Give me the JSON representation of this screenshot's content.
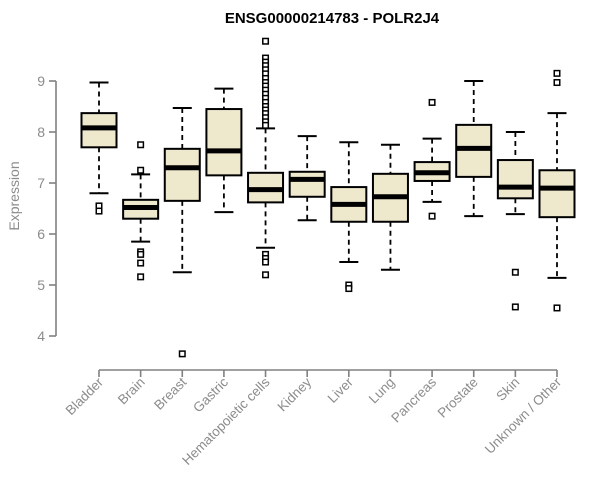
{
  "window": {
    "background": "#ffffff"
  },
  "colors": {
    "box_fill": "#EEE8CD",
    "box_stroke": "#000000",
    "median_stroke": "#000000",
    "whisker_stroke": "#000000",
    "outlier_stroke": "#000000",
    "axis_line": "#808080",
    "axis_text": "#8c8c8c",
    "title_text": "#000000"
  },
  "chart_data": {
    "type": "boxplot",
    "title": "ENSG00000214783 - POLR2J4",
    "xlabel": "",
    "ylabel": "Expression",
    "yticks": [
      4,
      5,
      6,
      7,
      8,
      9
    ],
    "ylim": [
      3.5,
      9.9
    ],
    "grid": false,
    "legend": null,
    "categories": [
      "Bladder",
      "Brain",
      "Breast",
      "Gastric",
      "Hematopoietic cells",
      "Kidney",
      "Liver",
      "Lung",
      "Pancreas",
      "Prostate",
      "Skin",
      "Unknown / Other"
    ],
    "series": [
      {
        "name": "Bladder",
        "whisker_low": 6.8,
        "q1": 7.7,
        "median": 8.08,
        "q3": 8.37,
        "whisker_high": 8.97,
        "outliers": [
          6.55,
          6.45
        ]
      },
      {
        "name": "Brain",
        "whisker_low": 5.85,
        "q1": 6.3,
        "median": 6.52,
        "q3": 6.67,
        "whisker_high": 7.17,
        "outliers": [
          7.75,
          7.25,
          5.65,
          5.6,
          5.43,
          5.16
        ]
      },
      {
        "name": "Breast",
        "whisker_low": 5.25,
        "q1": 6.65,
        "median": 7.3,
        "q3": 7.67,
        "whisker_high": 8.47,
        "outliers": [
          3.65
        ]
      },
      {
        "name": "Gastric",
        "whisker_low": 6.43,
        "q1": 7.15,
        "median": 7.63,
        "q3": 8.45,
        "whisker_high": 8.85,
        "outliers": []
      },
      {
        "name": "Hematopoietic cells",
        "whisker_low": 5.73,
        "q1": 6.62,
        "median": 6.87,
        "q3": 7.2,
        "whisker_high": 8.07,
        "outliers": [
          9.78,
          9.45,
          9.37,
          9.3,
          9.22,
          9.14,
          9.05,
          8.97,
          8.9,
          8.82,
          8.74,
          8.66,
          8.58,
          8.5,
          8.43,
          8.36,
          8.28,
          8.2,
          8.13,
          5.6,
          5.52,
          5.45,
          5.2
        ]
      },
      {
        "name": "Kidney",
        "whisker_low": 6.27,
        "q1": 6.73,
        "median": 7.07,
        "q3": 7.22,
        "whisker_high": 7.92,
        "outliers": []
      },
      {
        "name": "Liver",
        "whisker_low": 5.45,
        "q1": 6.24,
        "median": 6.58,
        "q3": 6.92,
        "whisker_high": 7.8,
        "outliers": [
          5.0,
          4.93
        ]
      },
      {
        "name": "Lung",
        "whisker_low": 5.3,
        "q1": 6.24,
        "median": 6.73,
        "q3": 7.18,
        "whisker_high": 7.75,
        "outliers": []
      },
      {
        "name": "Pancreas",
        "whisker_low": 6.63,
        "q1": 7.04,
        "median": 7.2,
        "q3": 7.41,
        "whisker_high": 7.87,
        "outliers": [
          8.58,
          6.35
        ]
      },
      {
        "name": "Prostate",
        "whisker_low": 6.35,
        "q1": 7.12,
        "median": 7.68,
        "q3": 8.14,
        "whisker_high": 9.0,
        "outliers": []
      },
      {
        "name": "Skin",
        "whisker_low": 6.39,
        "q1": 6.7,
        "median": 6.92,
        "q3": 7.45,
        "whisker_high": 8.0,
        "outliers": [
          5.25,
          4.57
        ]
      },
      {
        "name": "Unknown / Other",
        "whisker_low": 5.14,
        "q1": 6.33,
        "median": 6.9,
        "q3": 7.25,
        "whisker_high": 8.37,
        "outliers": [
          9.15,
          8.97,
          4.55
        ]
      }
    ]
  }
}
